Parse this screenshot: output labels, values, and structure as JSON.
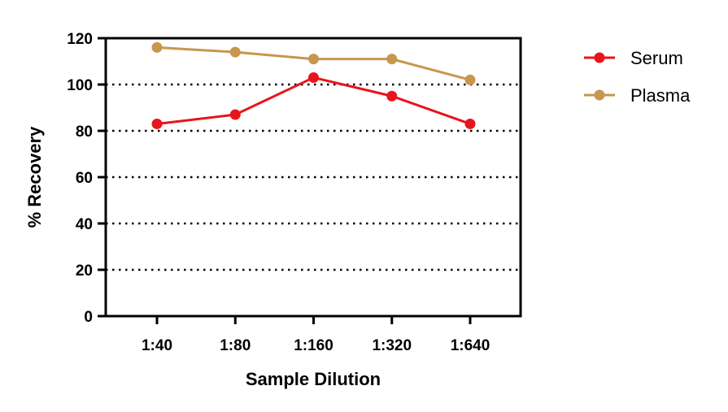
{
  "chart_data": {
    "type": "line",
    "title": "",
    "xlabel": "Sample Dilution",
    "ylabel": "% Recovery",
    "categories": [
      "1:40",
      "1:80",
      "1:160",
      "1:320",
      "1:640"
    ],
    "ylim": [
      0,
      120
    ],
    "yticks": [
      "0",
      "20",
      "40",
      "60",
      "80",
      "100",
      "120"
    ],
    "yticks_values": [
      0,
      20,
      40,
      60,
      80,
      100,
      120
    ],
    "gridlines": "dotted horizontal at 20, 40, 60, 80, 100",
    "legend_position": "top-right, outside plot",
    "series": [
      {
        "name": "Serum",
        "color": "#e8141b",
        "values": [
          83,
          87,
          103,
          95,
          83
        ]
      },
      {
        "name": "Plasma",
        "color": "#c8964e",
        "values": [
          116,
          114,
          111,
          111,
          102
        ]
      }
    ]
  }
}
